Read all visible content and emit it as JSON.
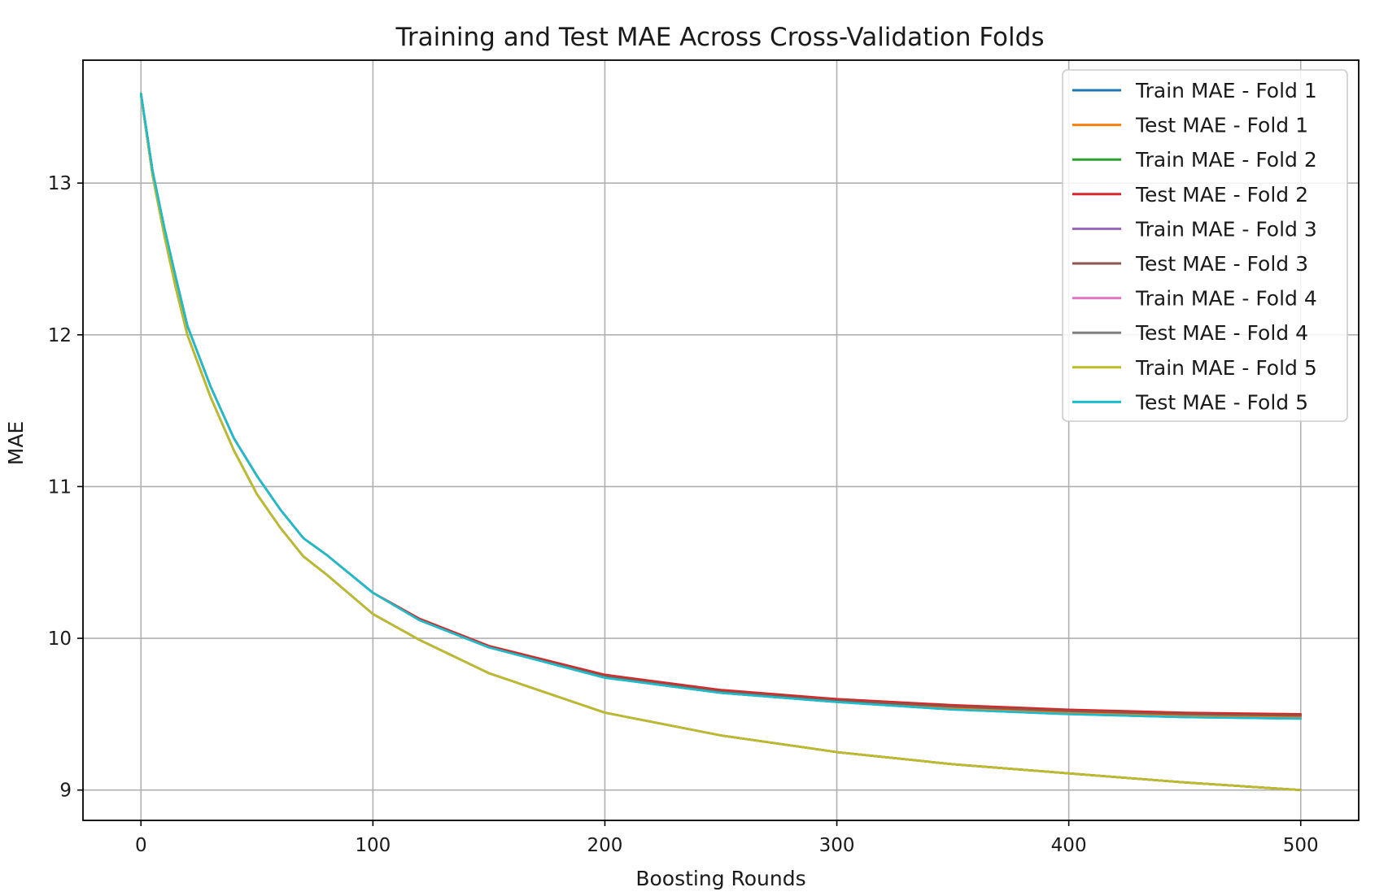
{
  "chart_data": {
    "type": "line",
    "title": "Training and Test MAE Across Cross-Validation Folds",
    "xlabel": "Boosting Rounds",
    "ylabel": "MAE",
    "xlim": [
      -25,
      525
    ],
    "ylim": [
      8.8,
      13.81
    ],
    "xticks": [
      0,
      100,
      200,
      300,
      400,
      500
    ],
    "yticks": [
      9,
      10,
      11,
      12,
      13
    ],
    "grid": true,
    "legend_position": "top-right",
    "x": [
      0,
      5,
      10,
      15,
      20,
      30,
      40,
      50,
      60,
      70,
      80,
      100,
      120,
      150,
      200,
      250,
      300,
      350,
      400,
      450,
      500
    ],
    "series": [
      {
        "name": "Train MAE - Fold 1",
        "color": "#1f77b4",
        "values": [
          13.58,
          13.05,
          12.66,
          12.31,
          12.0,
          11.59,
          11.24,
          10.95,
          10.73,
          10.54,
          10.42,
          10.16,
          9.99,
          9.77,
          9.51,
          9.36,
          9.25,
          9.17,
          9.11,
          9.05,
          9.0
        ]
      },
      {
        "name": "Test MAE - Fold 1",
        "color": "#ff7f0e",
        "values": [
          13.59,
          13.08,
          12.71,
          12.38,
          12.06,
          11.66,
          11.32,
          11.07,
          10.85,
          10.66,
          10.55,
          10.3,
          10.12,
          9.94,
          9.74,
          9.64,
          9.58,
          9.54,
          9.51,
          9.49,
          9.48
        ]
      },
      {
        "name": "Train MAE - Fold 2",
        "color": "#2ca02c",
        "values": [
          13.58,
          13.05,
          12.66,
          12.31,
          12.0,
          11.59,
          11.24,
          10.95,
          10.73,
          10.54,
          10.42,
          10.16,
          9.99,
          9.77,
          9.51,
          9.36,
          9.25,
          9.17,
          9.11,
          9.05,
          9.0
        ]
      },
      {
        "name": "Test MAE - Fold 2",
        "color": "#d62728",
        "values": [
          13.59,
          13.08,
          12.71,
          12.38,
          12.06,
          11.66,
          11.32,
          11.07,
          10.85,
          10.66,
          10.55,
          10.3,
          10.13,
          9.95,
          9.76,
          9.66,
          9.6,
          9.56,
          9.53,
          9.51,
          9.5
        ]
      },
      {
        "name": "Train MAE - Fold 3",
        "color": "#9467bd",
        "values": [
          13.58,
          13.05,
          12.66,
          12.31,
          12.0,
          11.59,
          11.24,
          10.95,
          10.73,
          10.54,
          10.42,
          10.16,
          9.99,
          9.77,
          9.51,
          9.36,
          9.25,
          9.17,
          9.11,
          9.05,
          9.0
        ]
      },
      {
        "name": "Test MAE - Fold 3",
        "color": "#8c564b",
        "values": [
          13.59,
          13.08,
          12.71,
          12.38,
          12.06,
          11.66,
          11.32,
          11.07,
          10.85,
          10.66,
          10.55,
          10.3,
          10.12,
          9.94,
          9.75,
          9.65,
          9.59,
          9.55,
          9.52,
          9.5,
          9.49
        ]
      },
      {
        "name": "Train MAE - Fold 4",
        "color": "#e377c2",
        "values": [
          13.58,
          13.05,
          12.66,
          12.31,
          12.0,
          11.59,
          11.24,
          10.95,
          10.73,
          10.54,
          10.42,
          10.16,
          9.99,
          9.77,
          9.51,
          9.36,
          9.25,
          9.17,
          9.11,
          9.05,
          9.0
        ]
      },
      {
        "name": "Test MAE - Fold 4",
        "color": "#7f7f7f",
        "values": [
          13.59,
          13.08,
          12.71,
          12.38,
          12.06,
          11.66,
          11.32,
          11.07,
          10.85,
          10.66,
          10.55,
          10.3,
          10.12,
          9.94,
          9.74,
          9.64,
          9.58,
          9.53,
          9.5,
          9.48,
          9.47
        ]
      },
      {
        "name": "Train MAE - Fold 5",
        "color": "#bcbd22",
        "values": [
          13.58,
          13.05,
          12.66,
          12.31,
          12.0,
          11.59,
          11.24,
          10.95,
          10.73,
          10.54,
          10.42,
          10.16,
          9.99,
          9.77,
          9.51,
          9.36,
          9.25,
          9.17,
          9.11,
          9.05,
          9.0
        ]
      },
      {
        "name": "Test MAE - Fold 5",
        "color": "#17becf",
        "values": [
          13.59,
          13.08,
          12.71,
          12.38,
          12.06,
          11.66,
          11.32,
          11.07,
          10.85,
          10.66,
          10.55,
          10.3,
          10.12,
          9.94,
          9.74,
          9.64,
          9.58,
          9.53,
          9.5,
          9.48,
          9.47
        ]
      }
    ]
  }
}
